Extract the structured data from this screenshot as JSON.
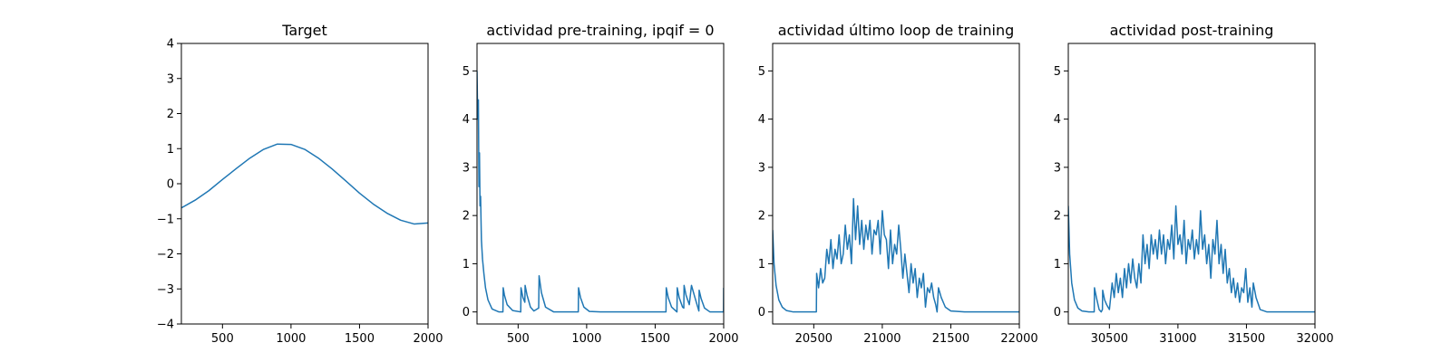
{
  "chart_data": [
    {
      "type": "line",
      "title": "Target",
      "xlabel": "",
      "ylabel": "",
      "xlim": [
        200,
        2000
      ],
      "ylim": [
        -4,
        4
      ],
      "xticks": [
        500,
        1000,
        1500,
        2000
      ],
      "yticks": [
        -4,
        -3,
        -2,
        -1,
        0,
        1,
        2,
        3,
        4
      ],
      "grid": false,
      "series": [
        {
          "color": "#1f77b4",
          "x": [
            200,
            300,
            400,
            500,
            600,
            700,
            800,
            900,
            1000,
            1100,
            1200,
            1300,
            1400,
            1500,
            1600,
            1700,
            1800,
            1900,
            2000
          ],
          "y": [
            -0.69,
            -0.47,
            -0.2,
            0.12,
            0.43,
            0.73,
            0.98,
            1.13,
            1.12,
            0.98,
            0.73,
            0.42,
            0.08,
            -0.27,
            -0.58,
            -0.84,
            -1.04,
            -1.15,
            -1.12
          ]
        }
      ]
    },
    {
      "type": "line",
      "title": "actividad pre-training, ipqif = 0",
      "xlabel": "",
      "ylabel": "",
      "xlim": [
        200,
        2000
      ],
      "ylim": [
        -0.25,
        5.57
      ],
      "xticks": [
        500,
        1000,
        1500,
        2000
      ],
      "yticks": [
        0,
        1,
        2,
        3,
        4,
        5
      ],
      "grid": false,
      "series": [
        {
          "color": "#1f77b4",
          "x": [
            200,
            205,
            210,
            214,
            218,
            222,
            226,
            232,
            240,
            250,
            262,
            280,
            310,
            360,
            389,
            391,
            400,
            420,
            460,
            519,
            521,
            535,
            549,
            551,
            565,
            590,
            615,
            650,
            653,
            670,
            700,
            760,
            939,
            941,
            955,
            980,
            1020,
            1100,
            1300,
            1500,
            1579,
            1581,
            1595,
            1620,
            1659,
            1661,
            1675,
            1700,
            1709,
            1711,
            1725,
            1749,
            1751,
            1765,
            1790,
            1819,
            1821,
            1835,
            1860,
            1900,
            1999,
            2000
          ],
          "y": [
            5.0,
            4.0,
            4.4,
            2.6,
            3.3,
            2.2,
            2.4,
            1.5,
            1.1,
            0.8,
            0.5,
            0.25,
            0.06,
            0.0,
            0.0,
            0.5,
            0.35,
            0.15,
            0.03,
            0.0,
            0.5,
            0.3,
            0.2,
            0.55,
            0.35,
            0.1,
            0.02,
            0.08,
            0.75,
            0.4,
            0.1,
            0.0,
            0.0,
            0.5,
            0.3,
            0.1,
            0.01,
            0.0,
            0.0,
            0.0,
            0.0,
            0.5,
            0.3,
            0.1,
            0.0,
            0.5,
            0.3,
            0.1,
            0.08,
            0.55,
            0.35,
            0.15,
            0.2,
            0.55,
            0.3,
            0.02,
            0.45,
            0.28,
            0.08,
            0.0,
            0.0,
            0.5
          ]
        }
      ]
    },
    {
      "type": "line",
      "title": "actividad último loop de training",
      "xlabel": "",
      "ylabel": "",
      "xlim": [
        20200,
        22000
      ],
      "ylim": [
        -0.25,
        5.57
      ],
      "xticks": [
        20500,
        21000,
        21500,
        22000
      ],
      "yticks": [
        0,
        1,
        2,
        3,
        4,
        5
      ],
      "grid": false,
      "series": [
        {
          "color": "#1f77b4",
          "x": [
            20200,
            20210,
            20225,
            20245,
            20270,
            20300,
            20350,
            20400,
            20500,
            20519,
            20521,
            20535,
            20550,
            20565,
            20580,
            20595,
            20610,
            20625,
            20640,
            20655,
            20670,
            20685,
            20700,
            20715,
            20730,
            20745,
            20760,
            20775,
            20790,
            20805,
            20820,
            20835,
            20850,
            20865,
            20880,
            20895,
            20910,
            20925,
            20940,
            20955,
            20970,
            20985,
            21000,
            21015,
            21030,
            21045,
            21060,
            21075,
            21090,
            21105,
            21120,
            21135,
            21150,
            21165,
            21180,
            21195,
            21210,
            21225,
            21240,
            21255,
            21270,
            21285,
            21300,
            21315,
            21330,
            21345,
            21360,
            21375,
            21390,
            21400,
            21410,
            21430,
            21460,
            21500,
            21600,
            21800,
            22000
          ],
          "y": [
            1.7,
            1.0,
            0.55,
            0.25,
            0.1,
            0.03,
            0.0,
            0.0,
            0.0,
            0.0,
            0.8,
            0.5,
            0.9,
            0.6,
            0.7,
            1.3,
            1.0,
            1.5,
            0.9,
            1.3,
            1.1,
            1.6,
            1.0,
            1.2,
            1.8,
            1.3,
            1.6,
            1.0,
            2.35,
            1.5,
            2.2,
            1.4,
            1.9,
            1.3,
            1.8,
            1.5,
            1.9,
            1.2,
            1.7,
            1.6,
            1.9,
            1.2,
            2.1,
            1.6,
            1.5,
            0.9,
            1.7,
            1.0,
            1.4,
            1.2,
            1.8,
            1.3,
            0.7,
            1.2,
            0.8,
            0.4,
            1.0,
            0.6,
            0.9,
            0.3,
            0.7,
            0.5,
            0.8,
            0.1,
            0.5,
            0.4,
            0.6,
            0.3,
            0.15,
            0.0,
            0.5,
            0.3,
            0.1,
            0.02,
            0.0,
            0.0,
            0.0
          ]
        }
      ]
    },
    {
      "type": "line",
      "title": "actividad post-training",
      "xlabel": "",
      "ylabel": "",
      "xlim": [
        30200,
        32000
      ],
      "ylim": [
        -0.25,
        5.57
      ],
      "xticks": [
        30500,
        31000,
        31500,
        32000
      ],
      "yticks": [
        0,
        1,
        2,
        3,
        4,
        5
      ],
      "grid": false,
      "series": [
        {
          "color": "#1f77b4",
          "x": [
            30200,
            30210,
            30225,
            30245,
            30270,
            30300,
            30350,
            30389,
            30391,
            30405,
            30425,
            30440,
            30449,
            30451,
            30465,
            30480,
            30500,
            30520,
            30535,
            30550,
            30565,
            30580,
            30595,
            30610,
            30625,
            30640,
            30655,
            30670,
            30685,
            30700,
            30715,
            30730,
            30745,
            30760,
            30775,
            30790,
            30805,
            30820,
            30835,
            30850,
            30865,
            30880,
            30895,
            30910,
            30925,
            30940,
            30955,
            30970,
            30985,
            31000,
            31015,
            31030,
            31045,
            31060,
            31075,
            31090,
            31105,
            31120,
            31135,
            31150,
            31165,
            31180,
            31195,
            31210,
            31225,
            31240,
            31255,
            31270,
            31285,
            31300,
            31315,
            31330,
            31345,
            31360,
            31375,
            31390,
            31405,
            31420,
            31435,
            31450,
            31465,
            31480,
            31495,
            31510,
            31525,
            31540,
            31550,
            31570,
            31600,
            31650,
            31700,
            31800,
            32000
          ],
          "y": [
            2.2,
            1.2,
            0.6,
            0.25,
            0.08,
            0.02,
            0.0,
            0.0,
            0.5,
            0.3,
            0.05,
            0.0,
            0.05,
            0.45,
            0.25,
            0.15,
            0.05,
            0.6,
            0.3,
            0.8,
            0.4,
            0.7,
            0.3,
            0.9,
            0.5,
            1.0,
            0.6,
            1.1,
            0.7,
            0.5,
            1.0,
            0.6,
            1.6,
            1.0,
            1.4,
            0.9,
            1.6,
            1.2,
            1.5,
            1.1,
            1.7,
            1.2,
            1.6,
            1.0,
            1.5,
            1.3,
            1.8,
            1.1,
            2.2,
            1.4,
            1.6,
            1.2,
            1.9,
            1.0,
            1.5,
            1.3,
            1.7,
            1.1,
            1.5,
            1.2,
            2.1,
            1.3,
            1.6,
            1.0,
            1.4,
            0.7,
            1.5,
            1.2,
            1.9,
            1.0,
            1.4,
            0.8,
            1.3,
            0.6,
            0.9,
            0.4,
            0.7,
            0.3,
            0.6,
            0.2,
            0.5,
            0.4,
            0.9,
            0.2,
            0.5,
            0.1,
            0.6,
            0.3,
            0.05,
            0.0,
            0.0,
            0.0,
            0.0
          ]
        }
      ]
    }
  ]
}
